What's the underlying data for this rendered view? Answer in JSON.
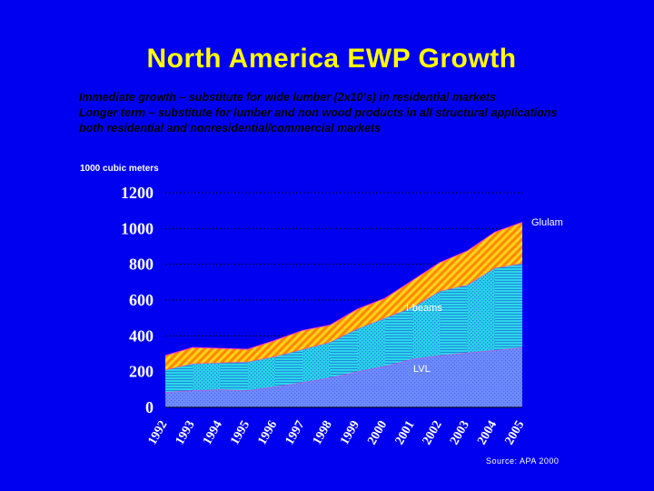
{
  "slide": {
    "title": "North America EWP Growth",
    "bullets": [
      "Immediate growth – substitute for wide lumber (2x10’s) in residential markets",
      "Longer term – substitute for lumber and non wood products in all structural applications",
      "both residential and nonresidential/commercial markets"
    ],
    "source": "Source: APA 2000"
  },
  "colors": {
    "background": "#0000f0",
    "title": "#ffff00",
    "lvl": "#6e8cff",
    "ibeams": "#2ad6e8",
    "glulam_base": "#ff8800",
    "glulam_stripe": "#ffd21a"
  },
  "chart_data": {
    "type": "area",
    "stacked": true,
    "title": "",
    "ylabel": "1000 cubic meters",
    "xlabel": "",
    "ylim": [
      0,
      1200
    ],
    "yticks": [
      0,
      200,
      400,
      600,
      800,
      1000,
      1200
    ],
    "grid": true,
    "categories": [
      "1992",
      "1993",
      "1994",
      "1995",
      "1996",
      "1997",
      "1998",
      "1999",
      "2000",
      "2001",
      "2002",
      "2003",
      "2004",
      "2005"
    ],
    "series": [
      {
        "name": "LVL",
        "values": [
          85,
          95,
          100,
          95,
          115,
          140,
          165,
          200,
          230,
          270,
          290,
          305,
          320,
          335
        ]
      },
      {
        "name": "I-beams",
        "values": [
          125,
          150,
          150,
          160,
          170,
          185,
          200,
          240,
          270,
          290,
          360,
          380,
          460,
          470
        ]
      },
      {
        "name": "Glulam",
        "values": [
          80,
          90,
          80,
          70,
          90,
          105,
          95,
          110,
          110,
          150,
          160,
          190,
          200,
          230
        ]
      }
    ],
    "series_labels": [
      "Glulam",
      "I-beams",
      "LVL"
    ]
  }
}
